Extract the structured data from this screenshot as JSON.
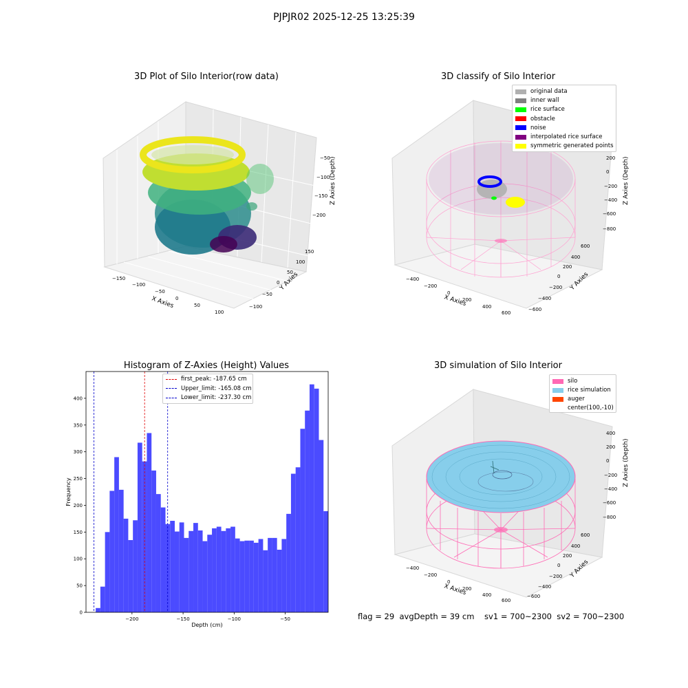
{
  "suptitle": "PJPJR02 2025-12-25 13:25:39",
  "footer": {
    "text": "flag = 29  avgDepth = 39 cm    sv1 = 700~2300  sv2 = 700~2300"
  },
  "colors": {
    "histogram_bar": "#4b4bff",
    "first_peak_line": "#e00000",
    "limit_line": "#0000cc",
    "silo": "#ff69b4",
    "rice_simulation": "#87ceeb",
    "auger": "#ff4500",
    "original_data": "#b0b0b0",
    "inner_wall": "#808080",
    "rice_surface": "#00ff00",
    "obstacle": "#ff0000",
    "noise": "#0000ff",
    "interpolated_rice_surface": "#800080",
    "symmetric_generated_points": "#ffff00"
  },
  "chart_data": [
    {
      "type": "scatter",
      "subtype": "3d-scatter",
      "title": "3D Plot of Silo Interior(row data)",
      "xlabel": "X Axies",
      "ylabel": "Y Axies",
      "zlabel": "Z Axies (Depth)",
      "xticks": [
        "−150",
        "−100",
        "−50",
        "0",
        "50",
        "100"
      ],
      "yticks": [
        "150",
        "100",
        "50",
        "0",
        "−50",
        "−100"
      ],
      "zticks": [
        "−50",
        "−100",
        "−150",
        "−200"
      ],
      "colormap": "viridis",
      "xlim": [
        -170,
        120
      ],
      "ylim": [
        -120,
        170
      ],
      "zlim": [
        -240,
        -30
      ]
    },
    {
      "type": "scatter",
      "subtype": "3d-classification",
      "title": "3D classify of Silo Interior",
      "xlabel": "X Axies",
      "ylabel": "Y Axies",
      "zlabel": "Z Axies (Depth)",
      "xticks": [
        "−400",
        "−200",
        "0",
        "200",
        "400",
        "600"
      ],
      "yticks": [
        "600",
        "400",
        "200",
        "0",
        "−200",
        "−400",
        "−600"
      ],
      "zticks": [
        "200",
        "0",
        "−200",
        "−400",
        "−600",
        "−800"
      ],
      "legend": [
        {
          "label": "original data",
          "color": "#b0b0b0"
        },
        {
          "label": "inner wall",
          "color": "#808080"
        },
        {
          "label": "rice surface",
          "color": "#00ff00"
        },
        {
          "label": "obstacle",
          "color": "#ff0000"
        },
        {
          "label": "noise",
          "color": "#0000ff"
        },
        {
          "label": "interpolated rice surface",
          "color": "#800080"
        },
        {
          "label": "symmetric generated points",
          "color": "#ffff00"
        }
      ],
      "legend_position": "top-right"
    },
    {
      "type": "bar",
      "subtype": "histogram",
      "title": "Histogram of Z-Axies (Height) Values",
      "xlabel": "Depth (cm)",
      "ylabel": "Frequency",
      "xlim": [
        -245,
        -8
      ],
      "ylim": [
        0,
        450
      ],
      "xticks": [
        -200,
        -150,
        -100,
        -50
      ],
      "yticks": [
        0,
        50,
        100,
        150,
        200,
        250,
        300,
        350,
        400
      ],
      "bin_start": -235.5,
      "bin_width": 4.55,
      "values": [
        8,
        48,
        150,
        227,
        290,
        229,
        175,
        135,
        172,
        317,
        282,
        335,
        265,
        221,
        196,
        165,
        171,
        151,
        168,
        139,
        152,
        167,
        153,
        133,
        145,
        157,
        160,
        152,
        157,
        160,
        138,
        133,
        134,
        134,
        130,
        137,
        116,
        139,
        139,
        117,
        137,
        184,
        259,
        271,
        343,
        377,
        426,
        418,
        322,
        189
      ],
      "vlines": [
        {
          "label": "first_peak: -187.65 cm",
          "x": -187.65,
          "color": "#e00000"
        },
        {
          "label": "Upper_limit: -165.08 cm",
          "x": -165.08,
          "color": "#0000cc"
        },
        {
          "label": "Lower_limit: -237.30 cm",
          "x": -237.3,
          "color": "#0000cc"
        }
      ],
      "legend_position": "upper-center"
    },
    {
      "type": "area",
      "subtype": "3d-surface",
      "title": "3D simulation of Silo Interior",
      "xlabel": "X Axies",
      "ylabel": "Y Axies",
      "zlabel": "Z Axies (Depth)",
      "xticks": [
        "−400",
        "−200",
        "0",
        "200",
        "400",
        "600"
      ],
      "yticks": [
        "600",
        "400",
        "200",
        "0",
        "−200",
        "−400",
        "−600"
      ],
      "zticks": [
        "400",
        "200",
        "0",
        "−200",
        "−400",
        "−600",
        "−800"
      ],
      "legend": [
        {
          "label": "silo",
          "color": "#ff69b4"
        },
        {
          "label": "rice simulation",
          "color": "#87ceeb"
        },
        {
          "label": "auger",
          "color": "#ff4500"
        },
        {
          "label": "center(100,-10)",
          "color": ""
        }
      ],
      "legend_position": "top-right"
    }
  ]
}
